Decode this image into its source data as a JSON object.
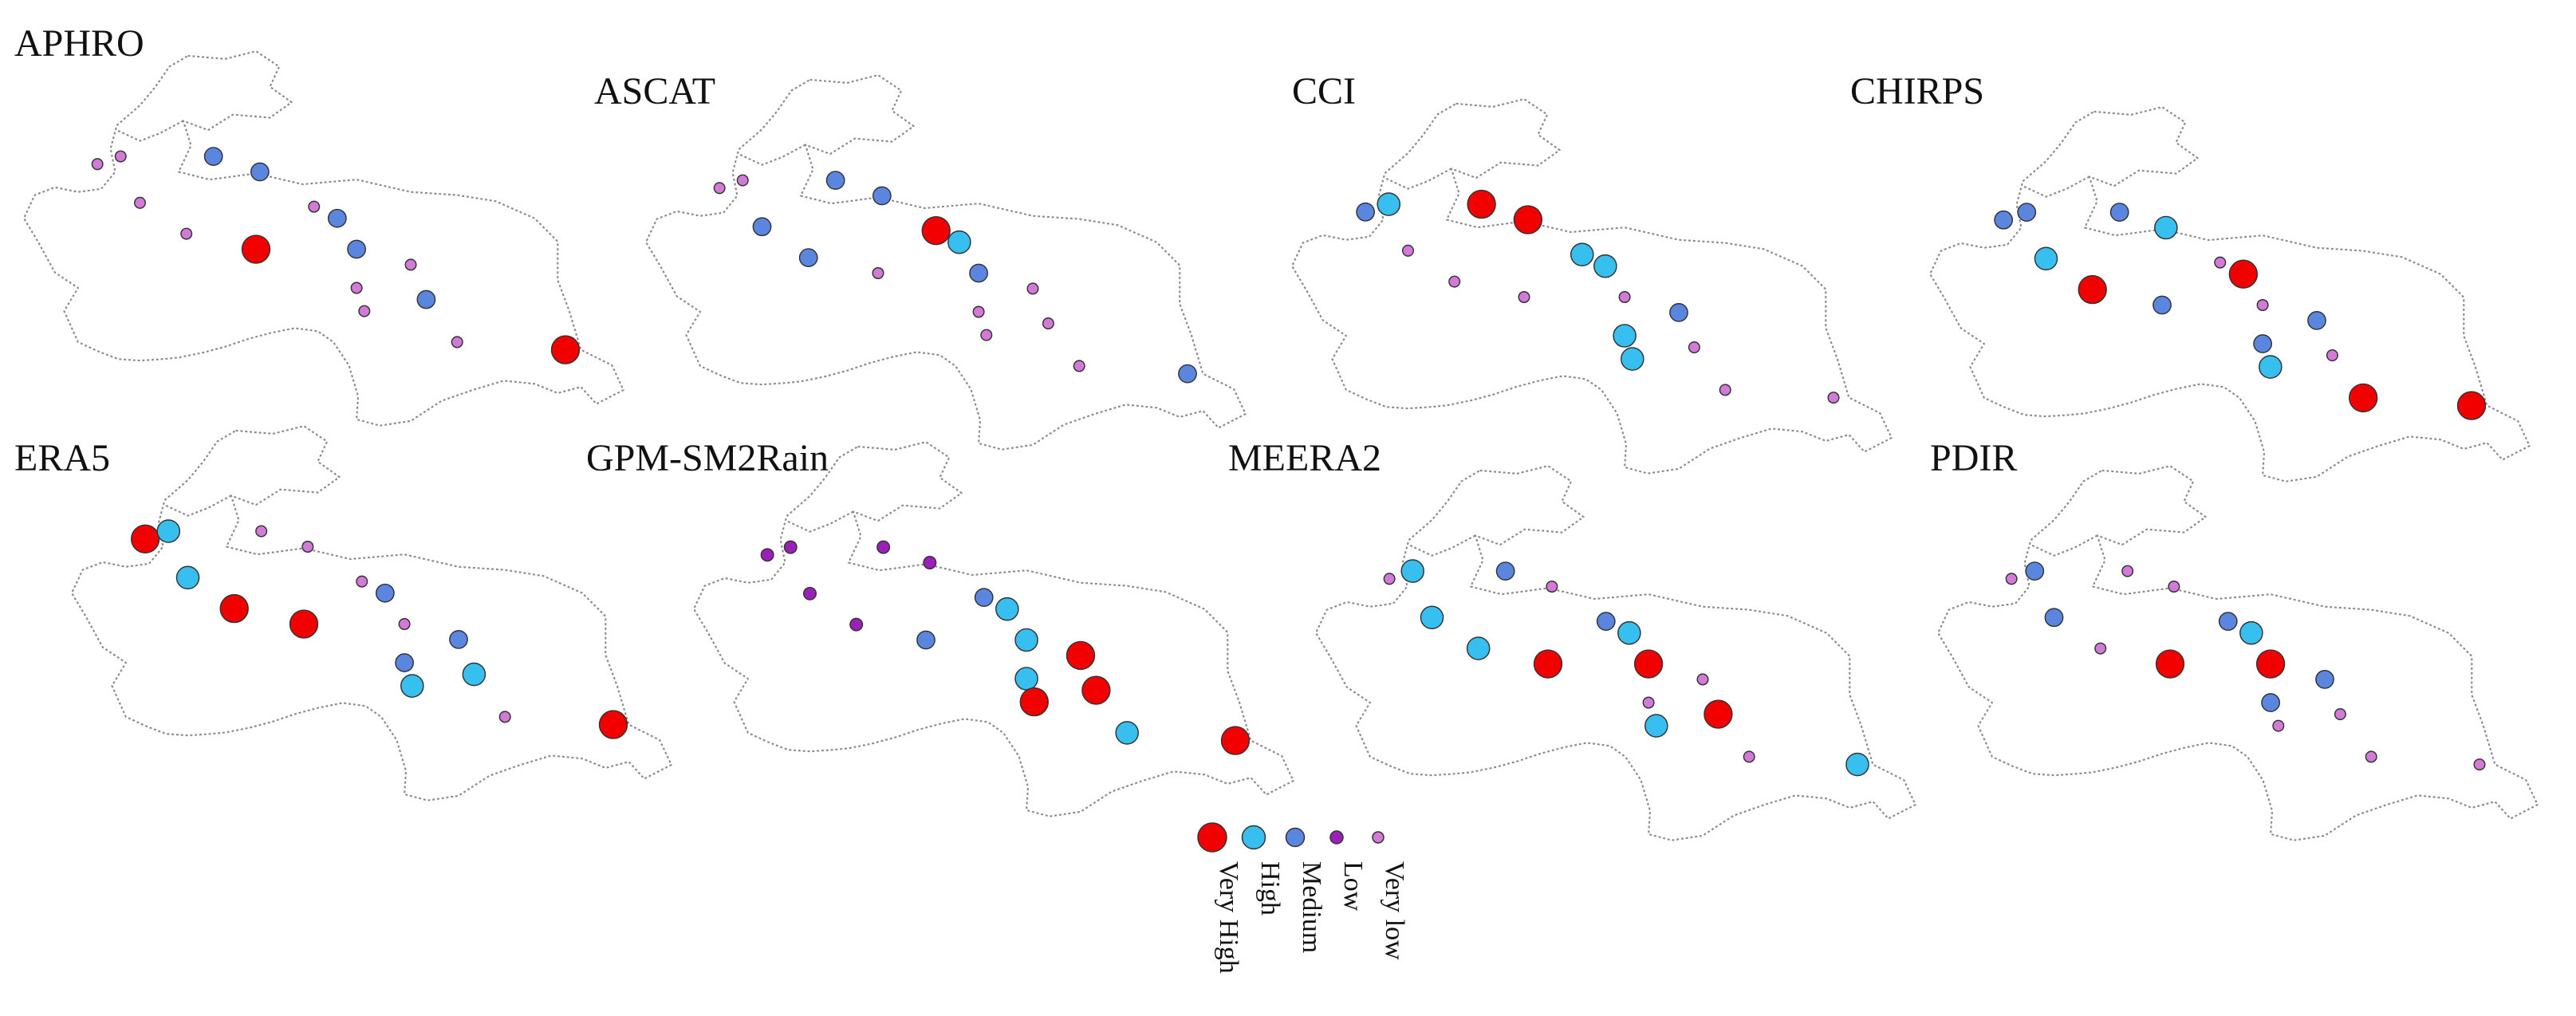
{
  "classes": {
    "very_high": {
      "label": "Very High",
      "color": "#f20000"
    },
    "high": {
      "label": "High",
      "color": "#37bff0"
    },
    "medium": {
      "label": "Medium",
      "color": "#5b86e0"
    },
    "low": {
      "label": "Low",
      "color": "#9b1fb8"
    },
    "very_low": {
      "label": "Very low",
      "color": "#d37ad8"
    }
  },
  "legend_order": [
    "very_high",
    "high",
    "medium",
    "low",
    "very_low"
  ],
  "panels": [
    {
      "name": "APHRO",
      "stations": [
        "very_low",
        "very_low",
        "very_low",
        "medium",
        "very_low",
        "medium",
        "very_high",
        "very_low",
        "medium",
        "medium",
        "very_low",
        "very_low",
        "very_low",
        "medium",
        "very_low",
        "very_high"
      ]
    },
    {
      "name": "ASCAT",
      "stations": [
        "very_low",
        "very_low",
        "medium",
        "medium",
        "medium",
        "medium",
        "very_low",
        "very_high",
        "high",
        "medium",
        "very_low",
        "very_low",
        "very_low",
        "very_low",
        "very_low",
        "medium"
      ]
    },
    {
      "name": "CCI",
      "stations": [
        "medium",
        "high",
        "very_low",
        "very_high",
        "very_low",
        "very_high",
        "very_low",
        "high",
        "high",
        "very_low",
        "high",
        "high",
        "medium",
        "very_low",
        "very_low",
        "very_low"
      ]
    },
    {
      "name": "CHIRPS",
      "stations": [
        "medium",
        "medium",
        "high",
        "medium",
        "very_high",
        "high",
        "medium",
        "very_low",
        "very_high",
        "very_low",
        "medium",
        "high",
        "medium",
        "very_low",
        "very_high",
        "very_high"
      ]
    },
    {
      "name": "ERA5",
      "stations": [
        "very_high",
        "high",
        "high",
        "very_low",
        "very_high",
        "very_low",
        "very_high",
        "very_low",
        "medium",
        "very_low",
        "medium",
        "high",
        "medium",
        "high",
        "very_low",
        "very_high"
      ]
    },
    {
      "name": "GPM-SM2Rain",
      "stations": [
        "low",
        "low",
        "low",
        "low",
        "low",
        "low",
        "medium",
        "medium",
        "high",
        "high",
        "high",
        "very_high",
        "very_high",
        "very_high",
        "high",
        "very_high"
      ]
    },
    {
      "name": "MEERA2",
      "stations": [
        "very_low",
        "high",
        "high",
        "medium",
        "high",
        "very_low",
        "very_high",
        "medium",
        "high",
        "very_high",
        "very_low",
        "high",
        "very_low",
        "very_high",
        "very_low",
        "high"
      ]
    },
    {
      "name": "PDIR",
      "stations": [
        "very_low",
        "medium",
        "medium",
        "very_low",
        "very_low",
        "very_low",
        "very_high",
        "medium",
        "high",
        "very_high",
        "medium",
        "very_low",
        "medium",
        "very_low",
        "very_low",
        "very_low"
      ]
    }
  ]
}
